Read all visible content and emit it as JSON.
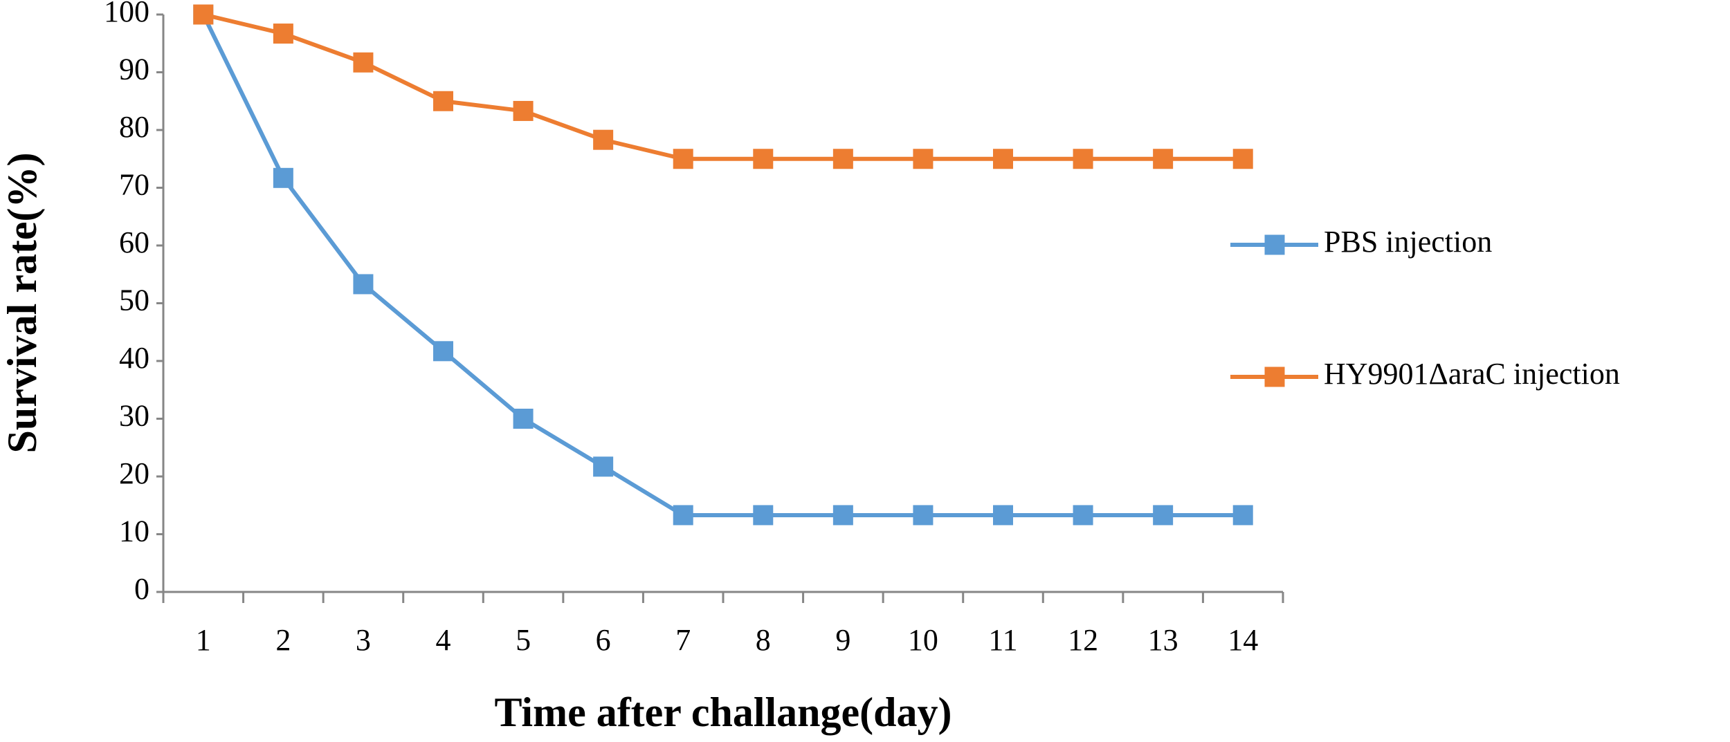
{
  "chart_data": {
    "type": "line",
    "x_label": "Time after challange(day)",
    "y_label": "Survival rate(%)",
    "categories": [
      "1",
      "2",
      "3",
      "4",
      "5",
      "6",
      "7",
      "8",
      "9",
      "10",
      "11",
      "12",
      "13",
      "14"
    ],
    "series": [
      {
        "name": "PBS injection",
        "color": "#5b9bd5",
        "values": [
          100,
          71.7,
          53.3,
          41.7,
          30,
          21.7,
          13.3,
          13.3,
          13.3,
          13.3,
          13.3,
          13.3,
          13.3,
          13.3
        ]
      },
      {
        "name": "HY9901ΔaraC injection",
        "color": "#ed7d31",
        "values": [
          100,
          96.7,
          91.7,
          85,
          83.3,
          78.3,
          75,
          75,
          75,
          75,
          75,
          75,
          75,
          75
        ]
      }
    ],
    "ylim": [
      0,
      100
    ],
    "yticks": [
      0,
      10,
      20,
      30,
      40,
      50,
      60,
      70,
      80,
      90,
      100
    ],
    "grid": false,
    "legend": "right"
  }
}
